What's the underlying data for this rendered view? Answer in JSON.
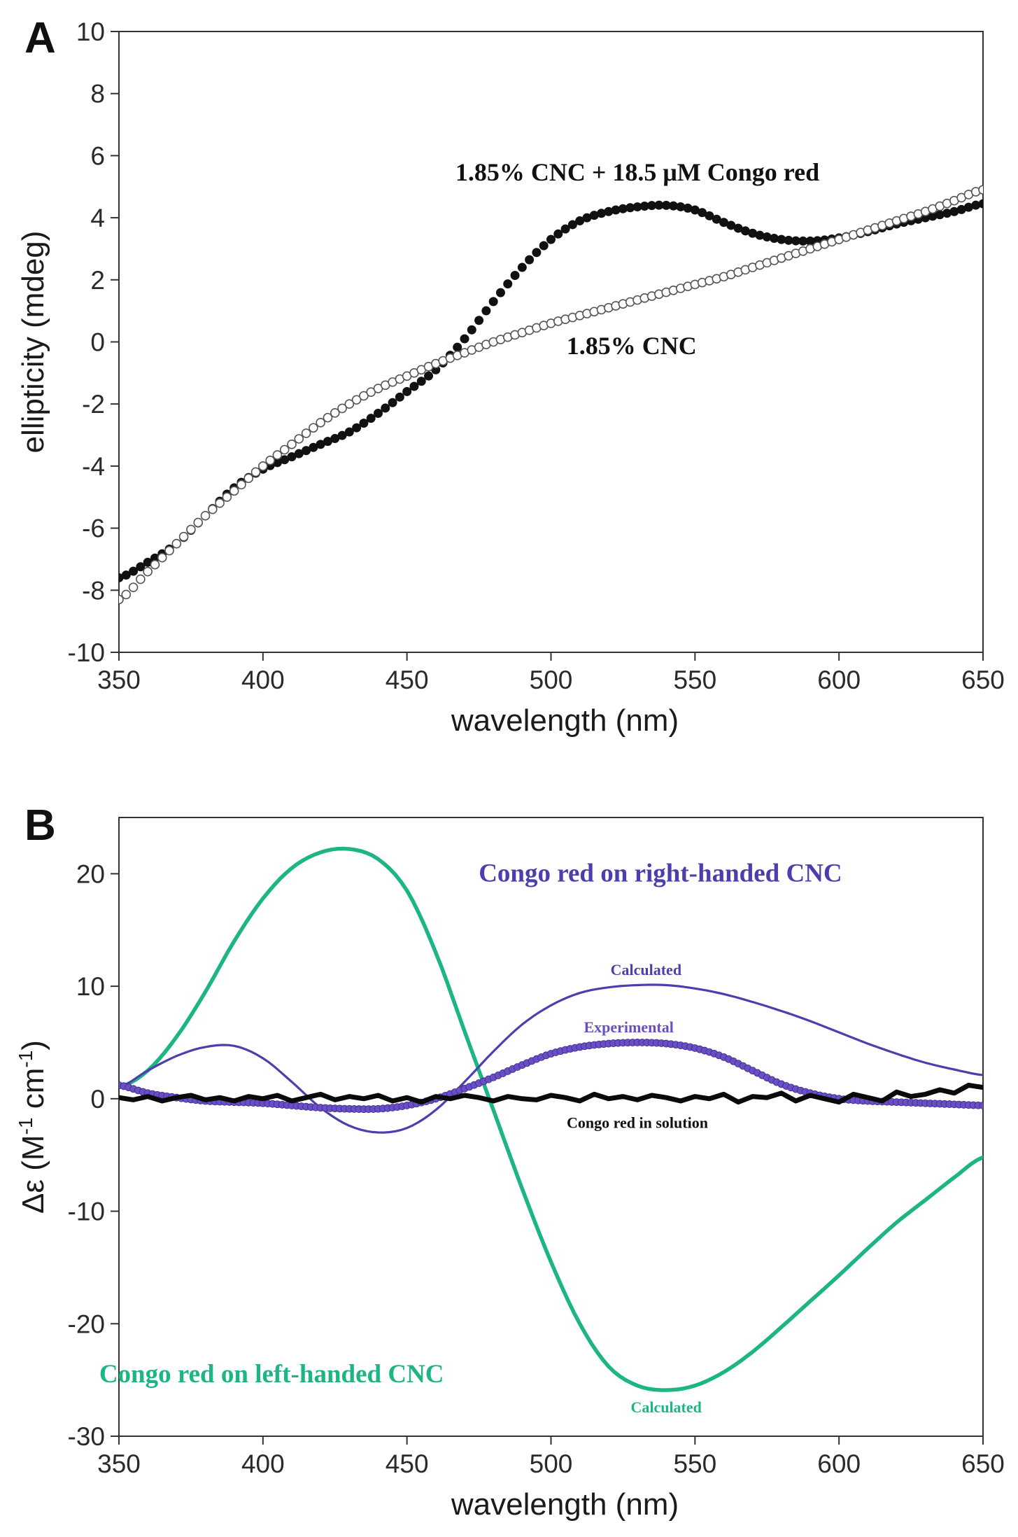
{
  "chart_data": [
    {
      "type": "scatter",
      "panel_label": "A",
      "title": "",
      "xlabel": "wavelength (nm)",
      "ylabel": "ellipticity (mdeg)",
      "xlim": [
        350,
        650
      ],
      "ylim": [
        -10,
        10
      ],
      "x_ticks": [
        350,
        400,
        450,
        500,
        550,
        600,
        650
      ],
      "x_tick_labels": [
        "350",
        "400",
        "450",
        "500",
        "550",
        "600",
        "650"
      ],
      "y_ticks": [
        -10,
        -8,
        -6,
        -4,
        -2,
        0,
        2,
        4,
        6,
        8,
        10
      ],
      "y_tick_labels": [
        "-10",
        "-8",
        "-6",
        "-4",
        "-2",
        "0",
        "2",
        "4",
        "6",
        "8",
        "10"
      ],
      "grid": false,
      "series": [
        {
          "name": "1.85% CNC + 18.5 μM Congo red",
          "marker": "filled-circle",
          "color": "#111111",
          "x": [
            350,
            360,
            370,
            380,
            390,
            400,
            410,
            420,
            430,
            440,
            450,
            460,
            470,
            480,
            490,
            500,
            510,
            520,
            530,
            540,
            550,
            560,
            570,
            580,
            590,
            600,
            610,
            620,
            630,
            640,
            650
          ],
          "y": [
            -7.6,
            -7.1,
            -6.5,
            -5.6,
            -4.7,
            -4.1,
            -3.7,
            -3.3,
            -2.9,
            -2.3,
            -1.6,
            -0.9,
            0.1,
            1.3,
            2.4,
            3.3,
            3.9,
            4.2,
            4.35,
            4.4,
            4.25,
            3.85,
            3.5,
            3.3,
            3.25,
            3.35,
            3.55,
            3.8,
            4.0,
            4.2,
            4.45
          ]
        },
        {
          "name": "1.85% CNC",
          "marker": "open-circle",
          "color": "#555555",
          "x": [
            350,
            360,
            370,
            380,
            390,
            400,
            410,
            420,
            430,
            440,
            450,
            460,
            470,
            480,
            490,
            500,
            510,
            520,
            530,
            540,
            550,
            560,
            570,
            580,
            590,
            600,
            610,
            620,
            630,
            640,
            650
          ],
          "y": [
            -8.3,
            -7.4,
            -6.5,
            -5.6,
            -4.8,
            -4.0,
            -3.3,
            -2.6,
            -2.0,
            -1.5,
            -1.1,
            -0.7,
            -0.35,
            0.0,
            0.3,
            0.6,
            0.85,
            1.1,
            1.35,
            1.6,
            1.85,
            2.1,
            2.4,
            2.7,
            3.0,
            3.3,
            3.6,
            3.9,
            4.2,
            4.55,
            4.9
          ]
        }
      ],
      "annotations": [
        {
          "text": "1.85% CNC + 18.5 μM Congo red",
          "x": 530,
          "y": 5.2,
          "color": "#111111"
        },
        {
          "text": "1.85% CNC",
          "x": 528,
          "y": -0.4,
          "color": "#111111"
        }
      ]
    },
    {
      "type": "line",
      "panel_label": "B",
      "title": "",
      "xlabel": "wavelength (nm)",
      "ylabel_prefix": "Δε (M",
      "ylabel_sup1": "-1",
      "ylabel_mid": " cm",
      "ylabel_sup2": "-1",
      "ylabel_suffix": ")",
      "xlim": [
        350,
        650
      ],
      "ylim": [
        -30,
        25
      ],
      "x_ticks": [
        350,
        400,
        450,
        500,
        550,
        600,
        650
      ],
      "x_tick_labels": [
        "350",
        "400",
        "450",
        "500",
        "550",
        "600",
        "650"
      ],
      "y_ticks": [
        -30,
        -20,
        -10,
        0,
        10,
        20
      ],
      "y_tick_labels": [
        "-30",
        "-20",
        "-10",
        "0",
        "10",
        "20"
      ],
      "grid": false,
      "series": [
        {
          "name": "Congo red on left-handed CNC (Calculated)",
          "style": "line",
          "color": "#1db584",
          "x": [
            350,
            360,
            370,
            380,
            390,
            400,
            410,
            420,
            430,
            440,
            450,
            460,
            470,
            480,
            490,
            500,
            510,
            520,
            530,
            540,
            550,
            560,
            570,
            580,
            590,
            600,
            610,
            620,
            630,
            640,
            650
          ],
          "y": [
            1,
            2.5,
            5.5,
            9.5,
            14,
            17.8,
            20.5,
            21.9,
            22.2,
            21.3,
            18.5,
            13,
            6,
            -1,
            -8,
            -14.5,
            -20,
            -23.8,
            -25.5,
            -25.9,
            -25.5,
            -24.3,
            -22.5,
            -20.3,
            -18,
            -15.7,
            -13.3,
            -11,
            -9,
            -7,
            -5.2
          ]
        },
        {
          "name": "Congo red on right-handed CNC (Calculated)",
          "style": "line",
          "color": "#4b3fae",
          "x": [
            350,
            360,
            370,
            380,
            390,
            400,
            410,
            420,
            430,
            440,
            450,
            460,
            470,
            480,
            490,
            500,
            510,
            520,
            530,
            540,
            550,
            560,
            570,
            580,
            590,
            600,
            610,
            620,
            630,
            640,
            650
          ],
          "y": [
            1.0,
            2.5,
            3.8,
            4.6,
            4.7,
            3.6,
            1.5,
            -0.8,
            -2.4,
            -3.0,
            -2.6,
            -1.0,
            1.5,
            4.2,
            6.6,
            8.3,
            9.4,
            9.9,
            10.1,
            10.1,
            9.8,
            9.3,
            8.6,
            7.8,
            6.9,
            5.9,
            4.9,
            4.0,
            3.2,
            2.6,
            2.1
          ]
        },
        {
          "name": "Congo red on right-handed CNC (Experimental)",
          "style": "dotted-thick",
          "color": "#6a4fc4",
          "x": [
            350,
            360,
            370,
            380,
            390,
            400,
            410,
            420,
            430,
            440,
            450,
            460,
            470,
            480,
            490,
            500,
            510,
            520,
            530,
            540,
            550,
            560,
            570,
            580,
            590,
            600,
            610,
            620,
            630,
            640,
            650
          ],
          "y": [
            1.2,
            0.5,
            0.1,
            -0.2,
            -0.3,
            -0.4,
            -0.6,
            -0.8,
            -0.9,
            -0.9,
            -0.6,
            0.0,
            0.9,
            1.9,
            3.0,
            4.0,
            4.6,
            4.9,
            5.0,
            4.9,
            4.5,
            3.7,
            2.5,
            1.3,
            0.5,
            0.0,
            -0.2,
            -0.3,
            -0.4,
            -0.5,
            -0.6
          ]
        },
        {
          "name": "Congo red in solution",
          "style": "line-thick-noisy",
          "color": "#0a0a0a",
          "x": [
            350,
            355,
            360,
            365,
            370,
            375,
            380,
            385,
            390,
            395,
            400,
            405,
            410,
            415,
            420,
            425,
            430,
            435,
            440,
            445,
            450,
            455,
            460,
            465,
            470,
            475,
            480,
            485,
            490,
            495,
            500,
            505,
            510,
            515,
            520,
            525,
            530,
            535,
            540,
            545,
            550,
            555,
            560,
            565,
            570,
            575,
            580,
            585,
            590,
            595,
            600,
            605,
            610,
            615,
            620,
            625,
            630,
            635,
            640,
            645,
            650
          ],
          "y": [
            0.1,
            -0.1,
            0.2,
            -0.2,
            0.1,
            0.3,
            -0.1,
            0.1,
            -0.2,
            0.2,
            0.0,
            0.3,
            -0.2,
            0.1,
            0.4,
            -0.1,
            0.2,
            0.0,
            0.3,
            -0.2,
            0.1,
            -0.3,
            0.2,
            0.0,
            0.3,
            0.1,
            -0.2,
            0.2,
            0.0,
            -0.1,
            0.3,
            0.1,
            -0.2,
            0.4,
            0.0,
            0.2,
            -0.1,
            0.3,
            0.1,
            -0.2,
            0.2,
            0.0,
            0.4,
            -0.3,
            0.2,
            0.1,
            0.5,
            -0.2,
            0.3,
            0.0,
            -0.3,
            0.4,
            0.1,
            -0.2,
            0.6,
            0.2,
            0.4,
            0.8,
            0.5,
            1.2,
            1.0
          ]
        }
      ],
      "annotations": [
        {
          "text": "Congo red on right-handed CNC",
          "x": 538,
          "y": 19.3,
          "color": "#4b3fae",
          "size": "large"
        },
        {
          "text": "Calculated",
          "x": 533,
          "y": 11.0,
          "color": "#4b3fae",
          "size": "small"
        },
        {
          "text": "Experimental",
          "x": 527,
          "y": 5.9,
          "color": "#6a4fc4",
          "size": "small"
        },
        {
          "text": "Congo red in solution",
          "x": 530,
          "y": -2.6,
          "color": "#111111",
          "size": "small"
        },
        {
          "text": "Congo red on left-handed CNC",
          "x": 403,
          "y": -25.2,
          "color": "#1db584",
          "size": "large"
        },
        {
          "text": "Calculated",
          "x": 540,
          "y": -27.9,
          "color": "#1db584",
          "size": "small"
        }
      ]
    }
  ]
}
